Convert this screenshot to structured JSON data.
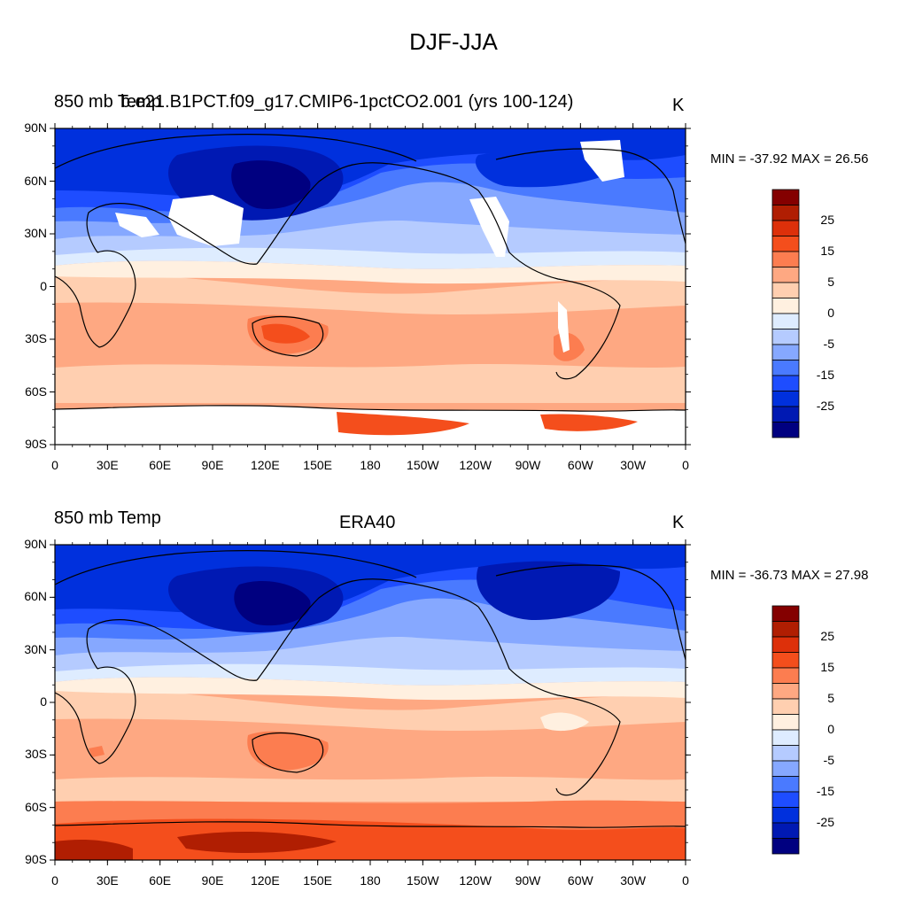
{
  "title": "DJF-JJA",
  "lat_ticks": [
    "90N",
    "60N",
    "30N",
    "0",
    "30S",
    "60S",
    "90S"
  ],
  "lon_ticks": [
    "0",
    "30E",
    "60E",
    "90E",
    "120E",
    "150E",
    "180",
    "150W",
    "120W",
    "90W",
    "60W",
    "30W",
    "0"
  ],
  "colors": [
    "#000080",
    "#0019b3",
    "#0030dd",
    "#1e4dff",
    "#4a7aff",
    "#86a8ff",
    "#b5cbff",
    "#deecff",
    "#fff0e0",
    "#ffcfb0",
    "#fea882",
    "#fc7d50",
    "#f44e1c",
    "#dd300a",
    "#b01e02",
    "#840000"
  ],
  "panels": [
    {
      "id": "model",
      "left_label": "850 mb Temp",
      "overlap_label": "b.e21.B1PCT.f09_g17.CMIP6-1pctCO2.001 (yrs 100-124)",
      "units": "K",
      "stats": "MIN = -37.92 MAX =  26.56",
      "colorbar_labels": [
        "25",
        "15",
        "5",
        "0",
        "-5",
        "-15",
        "-25"
      ]
    },
    {
      "id": "obs",
      "left_label": "850 mb Temp",
      "center_label": "ERA40",
      "units": "K",
      "stats": "MIN = -36.73 MAX =  27.98",
      "colorbar_labels": [
        "25",
        "15",
        "5",
        "0",
        "-5",
        "-15",
        "-25"
      ]
    }
  ]
}
